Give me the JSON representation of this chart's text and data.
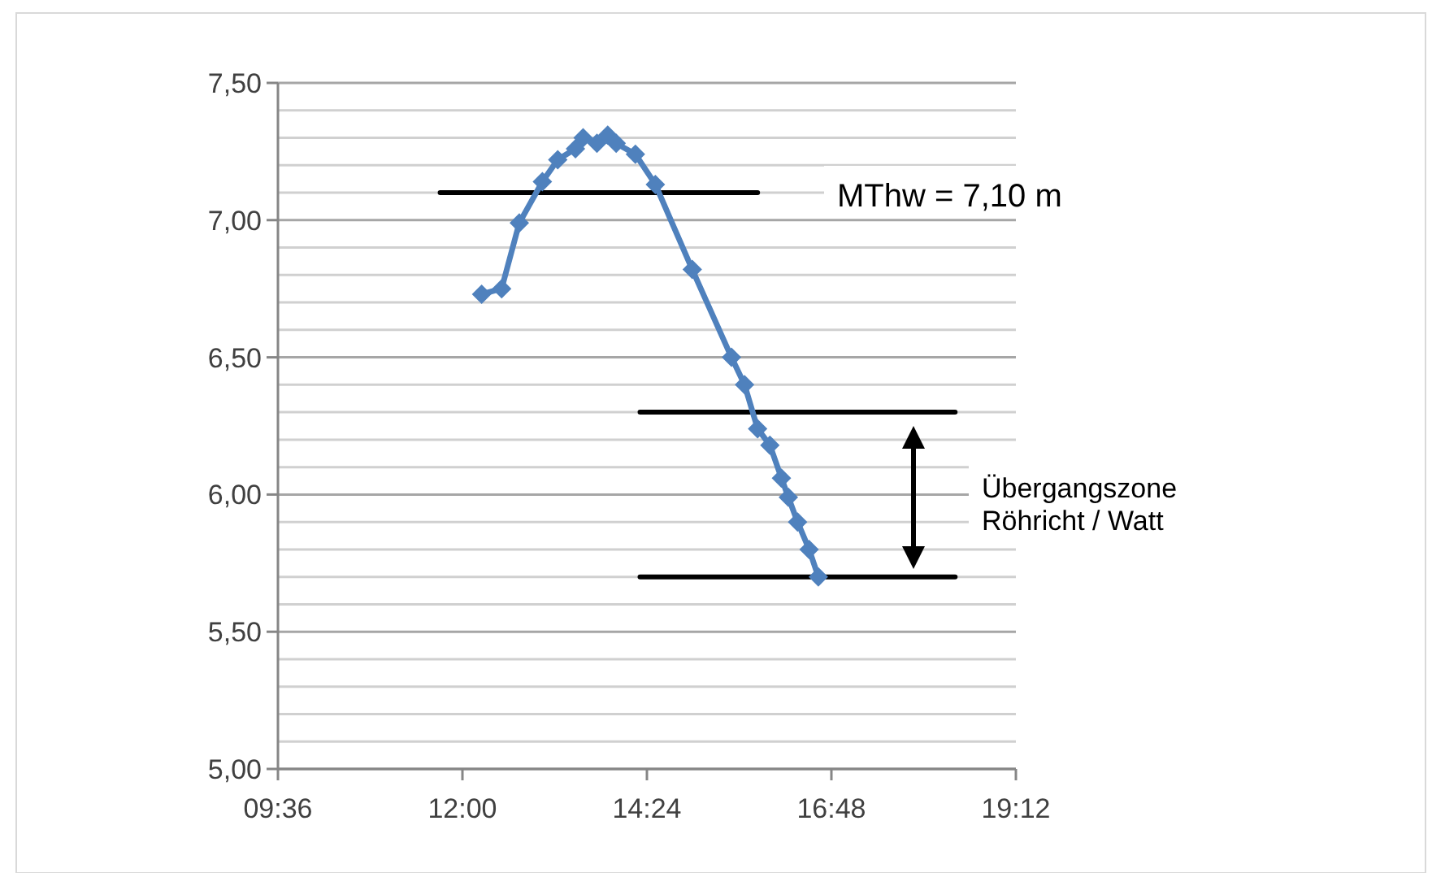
{
  "chart_data": {
    "type": "line",
    "x": [
      12.25,
      12.51,
      12.74,
      13.04,
      13.24,
      13.47,
      13.57,
      13.75,
      13.89,
      14.0,
      14.25,
      14.51,
      14.99,
      15.5,
      15.67,
      15.84,
      16.0,
      16.15,
      16.24,
      16.36,
      16.51,
      16.63
    ],
    "series": [
      {
        "color": "#4f81bd",
        "values": [
          6.73,
          6.75,
          6.99,
          7.14,
          7.22,
          7.26,
          7.3,
          7.28,
          7.31,
          7.28,
          7.24,
          7.13,
          6.82,
          6.5,
          6.4,
          6.24,
          6.18,
          6.06,
          5.99,
          5.9,
          5.8,
          5.7
        ]
      },
      {
        "type": "line",
        "color": "#000000",
        "marker": "none",
        "x": [
          11.71,
          15.84
        ],
        "values": [
          7.1,
          7.1
        ]
      },
      {
        "type": "line",
        "color": "#000000",
        "marker": "none",
        "x": [
          14.31,
          18.41
        ],
        "values": [
          6.3,
          6.3
        ]
      },
      {
        "type": "line",
        "color": "#000000",
        "marker": "none",
        "x": [
          14.31,
          18.41
        ],
        "values": [
          5.7,
          5.7
        ]
      }
    ],
    "marker": "diamond",
    "xlim": [
      9.6,
      19.2
    ],
    "xticks": [
      {
        "value": 9.6,
        "label": "09:36"
      },
      {
        "value": 12,
        "label": "12:00"
      },
      {
        "value": 14.4,
        "label": "14:24"
      },
      {
        "value": 16.8,
        "label": "16:48"
      },
      {
        "value": 19.2,
        "label": "19:12"
      }
    ],
    "ylim": [
      5,
      7.5
    ],
    "yticks": [
      {
        "value": 5,
        "label": "5,00"
      },
      {
        "value": 5.1,
        "label": null
      },
      {
        "value": 5.2,
        "label": null
      },
      {
        "value": 5.3,
        "label": null
      },
      {
        "value": 5.4,
        "label": null
      },
      {
        "value": 5.5,
        "label": "5,50"
      },
      {
        "value": 5.6,
        "label": null
      },
      {
        "value": 5.7,
        "label": null
      },
      {
        "value": 5.8,
        "label": null
      },
      {
        "value": 5.9,
        "label": null
      },
      {
        "value": 6,
        "label": "6,00"
      },
      {
        "value": 6.1,
        "label": null
      },
      {
        "value": 6.2,
        "label": null
      },
      {
        "value": 6.3,
        "label": null
      },
      {
        "value": 6.4,
        "label": null
      },
      {
        "value": 6.5,
        "label": "6,50"
      },
      {
        "value": 6.6,
        "label": null
      },
      {
        "value": 6.7,
        "label": null
      },
      {
        "value": 6.8,
        "label": null
      },
      {
        "value": 6.9,
        "label": null
      },
      {
        "value": 7,
        "label": "7,00"
      },
      {
        "value": 7.1,
        "label": null
      },
      {
        "value": 7.2,
        "label": null
      },
      {
        "value": 7.3,
        "label": null
      },
      {
        "value": 7.4,
        "label": null
      },
      {
        "value": 7.5,
        "label": "7,50"
      }
    ],
    "grid": "y",
    "annotations": [
      "MThw = 7,10 m",
      "Übergangszone\nRöhricht / Watt"
    ]
  }
}
